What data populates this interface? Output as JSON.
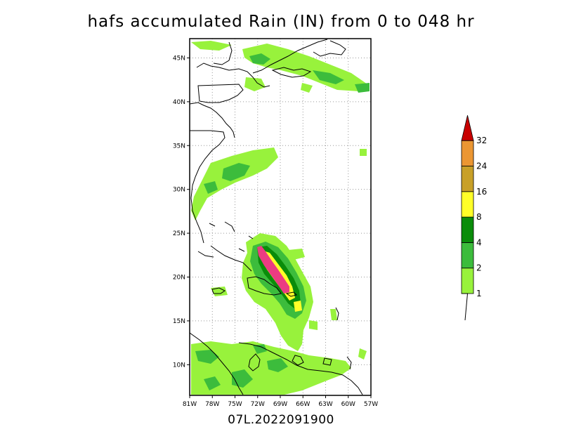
{
  "title": "hafs accumulated Rain (IN) from 0 to 048 hr",
  "footer": "07L.2022091900",
  "axes": {
    "lat_labels": [
      "45N",
      "40N",
      "35N",
      "30N",
      "25N",
      "20N",
      "15N",
      "10N"
    ],
    "lat_values": [
      45,
      40,
      35,
      30,
      25,
      20,
      15,
      10
    ],
    "lon_labels": [
      "81W",
      "78W",
      "75W",
      "72W",
      "69W",
      "66W",
      "63W",
      "60W",
      "57W"
    ],
    "lon_values": [
      -81,
      -78,
      -75,
      -72,
      -69,
      -66,
      -63,
      -60,
      -57
    ],
    "lon_range": [
      -81,
      -57
    ],
    "lat_range": [
      6.5,
      47.2
    ],
    "grid": "dotted"
  },
  "colorbar": {
    "levels": [
      "1",
      "2",
      "4",
      "8",
      "16",
      "24",
      "32"
    ],
    "colors": [
      "#98f23c",
      "#3cbc3c",
      "#0a8c0a",
      "#ffff28",
      "#c8a028",
      "#eb9632",
      "#c80000"
    ]
  },
  "chart_data": {
    "type": "heatmap",
    "title": "hafs accumulated Rain (IN) from 0 to 048 hr",
    "storm_id": "07L.2022091900",
    "units": "IN",
    "color_levels": [
      1,
      2,
      4,
      8,
      16,
      24,
      32
    ]
  }
}
